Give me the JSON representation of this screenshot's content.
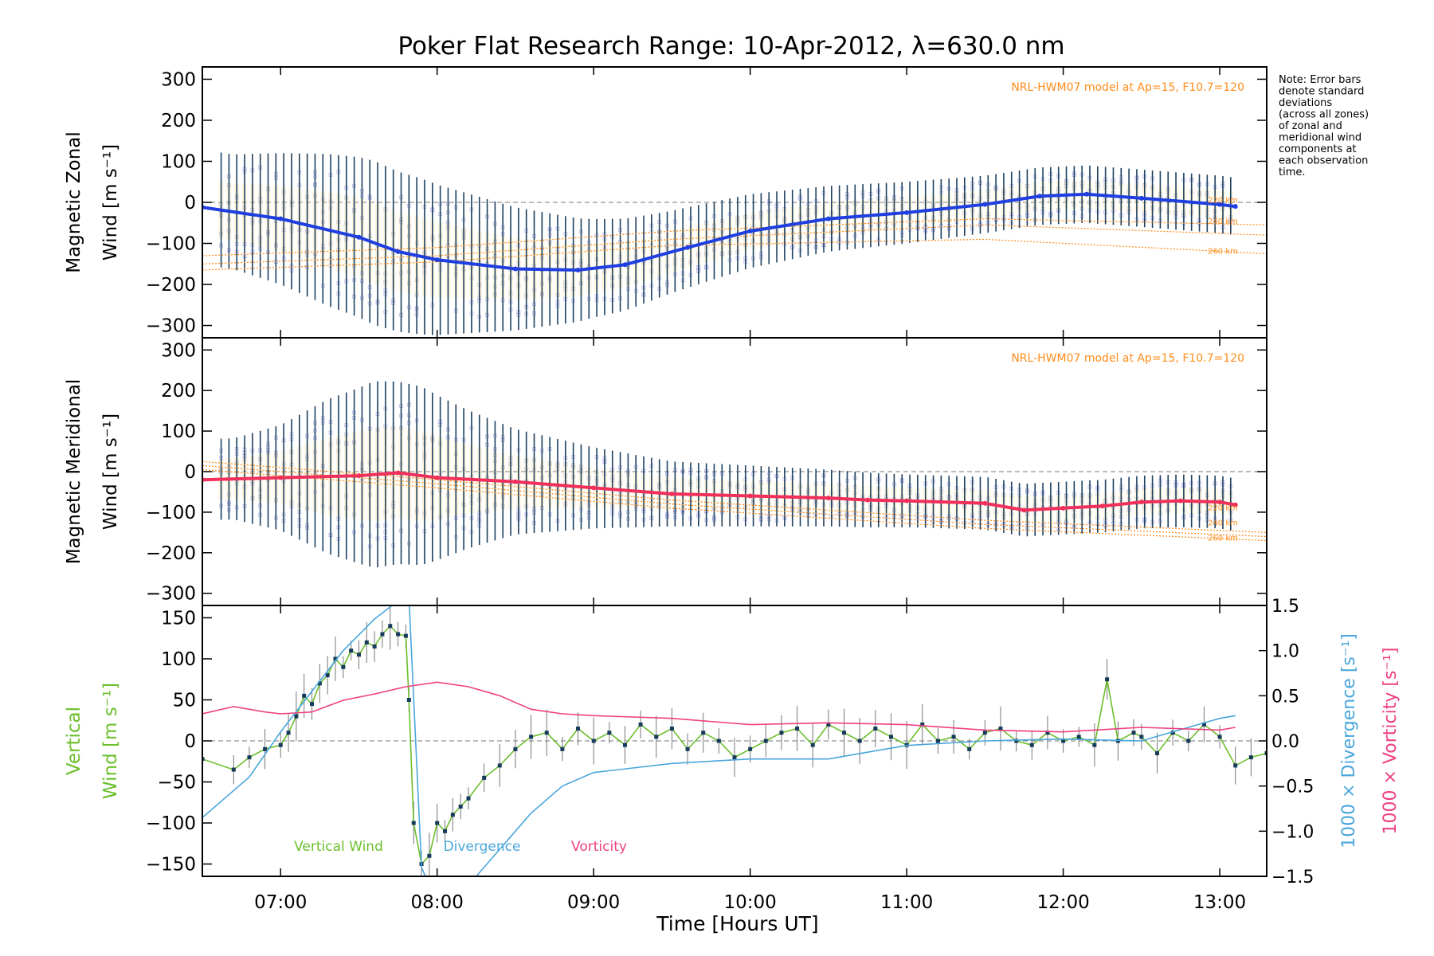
{
  "figure": {
    "title": "Poker Flat Research Range: 10-Apr-2012, λ=630.0 nm",
    "xlabel": "Time [Hours UT]",
    "note": [
      "Note: Error bars",
      "denote standard",
      "deviations",
      "(across all zones)",
      "of zonal and",
      "meridional wind",
      "components at",
      "each observation",
      "time."
    ],
    "model_label": "NRL-HWM07 model at Ap=15, F10.7=120",
    "altitude_labels": [
      "220 km",
      "240 km",
      "260 km"
    ]
  },
  "colors": {
    "zonal_mean": "#1f3fe0",
    "meridional_mean": "#f0305a",
    "errorbar": "#1c3f5e",
    "model": "#ff8c1a",
    "scatter": "#9f9fe0",
    "vertical": "#6cbf2c",
    "divergence": "#4aa6dc",
    "vorticity": "#ee3f82"
  },
  "chart_data": [
    {
      "type": "line",
      "panel": "zonal",
      "ylabel_line1": "Magnetic Zonal",
      "ylabel_line2": "Wind [m s",
      "ylabel_sup": "-1",
      "ylabel_close": "]",
      "xlim": [
        6.5,
        13.3
      ],
      "ylim": [
        -330,
        330
      ],
      "yticks": [
        -300,
        -200,
        -100,
        0,
        100,
        200,
        300
      ],
      "xticks": [
        "07:00",
        "08:00",
        "09:00",
        "10:00",
        "11:00",
        "12:00",
        "13:00"
      ],
      "series": [
        {
          "name": "Zonal mean",
          "x": [
            6.5,
            7.0,
            7.5,
            7.75,
            8.0,
            8.5,
            8.9,
            9.2,
            9.6,
            10.0,
            10.5,
            11.0,
            11.5,
            11.85,
            12.15,
            12.5,
            13.0,
            13.1
          ],
          "y": [
            -12,
            -40,
            -85,
            -120,
            -140,
            -162,
            -165,
            -152,
            -110,
            -70,
            -40,
            -25,
            -5,
            15,
            20,
            10,
            -5,
            -10
          ]
        }
      ],
      "spread": [
        {
          "x": 6.7,
          "sd": 140
        },
        {
          "x": 7.0,
          "sd": 160
        },
        {
          "x": 7.3,
          "sd": 185
        },
        {
          "x": 7.6,
          "sd": 200
        },
        {
          "x": 7.9,
          "sd": 190
        },
        {
          "x": 8.2,
          "sd": 170
        },
        {
          "x": 8.5,
          "sd": 150
        },
        {
          "x": 9.0,
          "sd": 120
        },
        {
          "x": 9.5,
          "sd": 100
        },
        {
          "x": 10.0,
          "sd": 90
        },
        {
          "x": 10.5,
          "sd": 80
        },
        {
          "x": 11.0,
          "sd": 75
        },
        {
          "x": 11.5,
          "sd": 70
        },
        {
          "x": 12.0,
          "sd": 70
        },
        {
          "x": 12.5,
          "sd": 70
        },
        {
          "x": 13.1,
          "sd": 70
        }
      ],
      "model": [
        {
          "name": "220 km",
          "x": [
            6.5,
            8.0,
            9.5,
            11.5,
            13.3
          ],
          "y": [
            -130,
            -110,
            -70,
            -40,
            -55
          ]
        },
        {
          "name": "240 km",
          "x": [
            6.5,
            8.0,
            9.5,
            11.5,
            13.3
          ],
          "y": [
            -150,
            -130,
            -90,
            -55,
            -80
          ]
        },
        {
          "name": "260 km",
          "x": [
            6.5,
            8.0,
            9.5,
            11.5,
            13.3
          ],
          "y": [
            -165,
            -145,
            -105,
            -90,
            -125
          ]
        }
      ]
    },
    {
      "type": "line",
      "panel": "meridional",
      "ylabel_line1": "Magnetic Meridional",
      "ylabel_line2": "Wind [m s",
      "ylabel_sup": "-1",
      "ylabel_close": "]",
      "xlim": [
        6.5,
        13.3
      ],
      "ylim": [
        -330,
        330
      ],
      "yticks": [
        -300,
        -200,
        -100,
        0,
        100,
        200,
        300
      ],
      "series": [
        {
          "name": "Meridional mean",
          "x": [
            6.5,
            7.0,
            7.5,
            7.75,
            8.0,
            8.5,
            9.0,
            9.5,
            10.0,
            10.5,
            10.75,
            11.0,
            11.5,
            11.75,
            12.0,
            12.25,
            12.5,
            12.75,
            13.0,
            13.1
          ],
          "y": [
            -20,
            -15,
            -10,
            -3,
            -15,
            -25,
            -40,
            -55,
            -60,
            -65,
            -70,
            -72,
            -78,
            -95,
            -90,
            -85,
            -75,
            -72,
            -75,
            -82
          ]
        }
      ],
      "spread": [
        {
          "x": 6.7,
          "sd": 100
        },
        {
          "x": 7.0,
          "sd": 130
        },
        {
          "x": 7.3,
          "sd": 190
        },
        {
          "x": 7.6,
          "sd": 230
        },
        {
          "x": 7.9,
          "sd": 220
        },
        {
          "x": 8.2,
          "sd": 170
        },
        {
          "x": 8.5,
          "sd": 130
        },
        {
          "x": 9.0,
          "sd": 100
        },
        {
          "x": 9.5,
          "sd": 80
        },
        {
          "x": 10.0,
          "sd": 75
        },
        {
          "x": 10.5,
          "sd": 70
        },
        {
          "x": 11.0,
          "sd": 65
        },
        {
          "x": 11.5,
          "sd": 65
        },
        {
          "x": 12.0,
          "sd": 65
        },
        {
          "x": 12.5,
          "sd": 65
        },
        {
          "x": 13.1,
          "sd": 65
        }
      ],
      "model": [
        {
          "name": "220 km",
          "x": [
            6.5,
            8.0,
            9.5,
            11.5,
            13.3
          ],
          "y": [
            25,
            -20,
            -70,
            -120,
            -150
          ]
        },
        {
          "name": "240 km",
          "x": [
            6.5,
            8.0,
            9.5,
            11.5,
            13.3
          ],
          "y": [
            15,
            -30,
            -80,
            -130,
            -160
          ]
        },
        {
          "name": "260 km",
          "x": [
            6.5,
            8.0,
            9.5,
            11.5,
            13.3
          ],
          "y": [
            5,
            -40,
            -90,
            -140,
            -170
          ]
        }
      ]
    },
    {
      "type": "line",
      "panel": "vertical",
      "ylabel_line1": "Vertical",
      "ylabel_line2": "Wind [m s",
      "ylabel_sup": "-1",
      "ylabel_close": "]",
      "y2label_line1": "1000 × Divergence [s",
      "y2label_line2": "1000 × Vorticity [s",
      "xlim": [
        6.5,
        13.3
      ],
      "ylim": [
        -165,
        165
      ],
      "yticks": [
        -150,
        -100,
        -50,
        0,
        50,
        100,
        150
      ],
      "y2lim": [
        -1.5,
        1.5
      ],
      "y2ticks": [
        -1.5,
        -1.0,
        -0.5,
        0.0,
        0.5,
        1.0,
        1.5
      ],
      "y2ticklabels": [
        "−1.5",
        "−1.0",
        "−0.5",
        "0.0",
        "0.5",
        "1.0",
        "1.5"
      ],
      "legend": [
        "Vertical Wind",
        "Divergence",
        "Vorticity"
      ],
      "series": [
        {
          "name": "Vertical Wind",
          "x": [
            6.5,
            6.7,
            6.8,
            6.9,
            7.0,
            7.05,
            7.1,
            7.15,
            7.2,
            7.25,
            7.3,
            7.35,
            7.4,
            7.45,
            7.5,
            7.55,
            7.6,
            7.65,
            7.7,
            7.75,
            7.8,
            7.82,
            7.85,
            7.9,
            7.95,
            8.0,
            8.05,
            8.1,
            8.15,
            8.2,
            8.3,
            8.4,
            8.5,
            8.6,
            8.7,
            8.8,
            8.9,
            9.0,
            9.1,
            9.2,
            9.3,
            9.4,
            9.5,
            9.6,
            9.7,
            9.8,
            9.9,
            10.0,
            10.1,
            10.2,
            10.3,
            10.4,
            10.5,
            10.6,
            10.7,
            10.8,
            10.9,
            11.0,
            11.1,
            11.2,
            11.3,
            11.4,
            11.5,
            11.6,
            11.7,
            11.8,
            11.9,
            12.0,
            12.1,
            12.2,
            12.28,
            12.35,
            12.45,
            12.5,
            12.6,
            12.7,
            12.8,
            12.9,
            13.0,
            13.1,
            13.2,
            13.3
          ],
          "y": [
            -22,
            -35,
            -20,
            -10,
            -5,
            10,
            30,
            55,
            45,
            70,
            80,
            100,
            90,
            110,
            105,
            120,
            115,
            130,
            140,
            130,
            128,
            50,
            -100,
            -150,
            -140,
            -100,
            -110,
            -90,
            -80,
            -70,
            -45,
            -30,
            -10,
            5,
            10,
            -10,
            15,
            0,
            10,
            -5,
            20,
            5,
            15,
            -10,
            10,
            0,
            -20,
            -10,
            0,
            10,
            15,
            -5,
            20,
            10,
            0,
            15,
            5,
            -5,
            20,
            0,
            5,
            -10,
            10,
            15,
            0,
            -5,
            10,
            0,
            5,
            -5,
            75,
            0,
            10,
            5,
            -15,
            10,
            0,
            20,
            5,
            -30,
            -20,
            -15
          ]
        },
        {
          "name": "Divergence",
          "axis": "y2",
          "x": [
            6.5,
            6.8,
            7.0,
            7.2,
            7.4,
            7.6,
            7.75,
            7.82,
            7.9,
            8.0,
            8.2,
            8.4,
            8.6,
            8.8,
            9.0,
            9.5,
            10.0,
            10.5,
            11.0,
            11.5,
            12.0,
            12.5,
            13.0,
            13.1
          ],
          "y": [
            -0.85,
            -0.4,
            0.1,
            0.55,
            1.0,
            1.35,
            1.55,
            1.6,
            -1.4,
            -1.8,
            -1.6,
            -1.2,
            -0.8,
            -0.5,
            -0.35,
            -0.25,
            -0.2,
            -0.2,
            -0.05,
            0.0,
            0.02,
            0.0,
            0.25,
            0.28
          ]
        },
        {
          "name": "Vorticity",
          "axis": "y2",
          "x": [
            6.5,
            6.7,
            6.9,
            7.0,
            7.2,
            7.4,
            7.6,
            7.8,
            8.0,
            8.2,
            8.4,
            8.6,
            8.8,
            9.0,
            9.5,
            10.0,
            10.5,
            11.0,
            11.5,
            12.0,
            12.5,
            13.0,
            13.1
          ],
          "y": [
            0.3,
            0.38,
            0.32,
            0.3,
            0.32,
            0.45,
            0.52,
            0.6,
            0.65,
            0.6,
            0.5,
            0.35,
            0.3,
            0.28,
            0.25,
            0.18,
            0.2,
            0.18,
            0.12,
            0.1,
            0.15,
            0.12,
            0.15
          ]
        }
      ]
    }
  ]
}
